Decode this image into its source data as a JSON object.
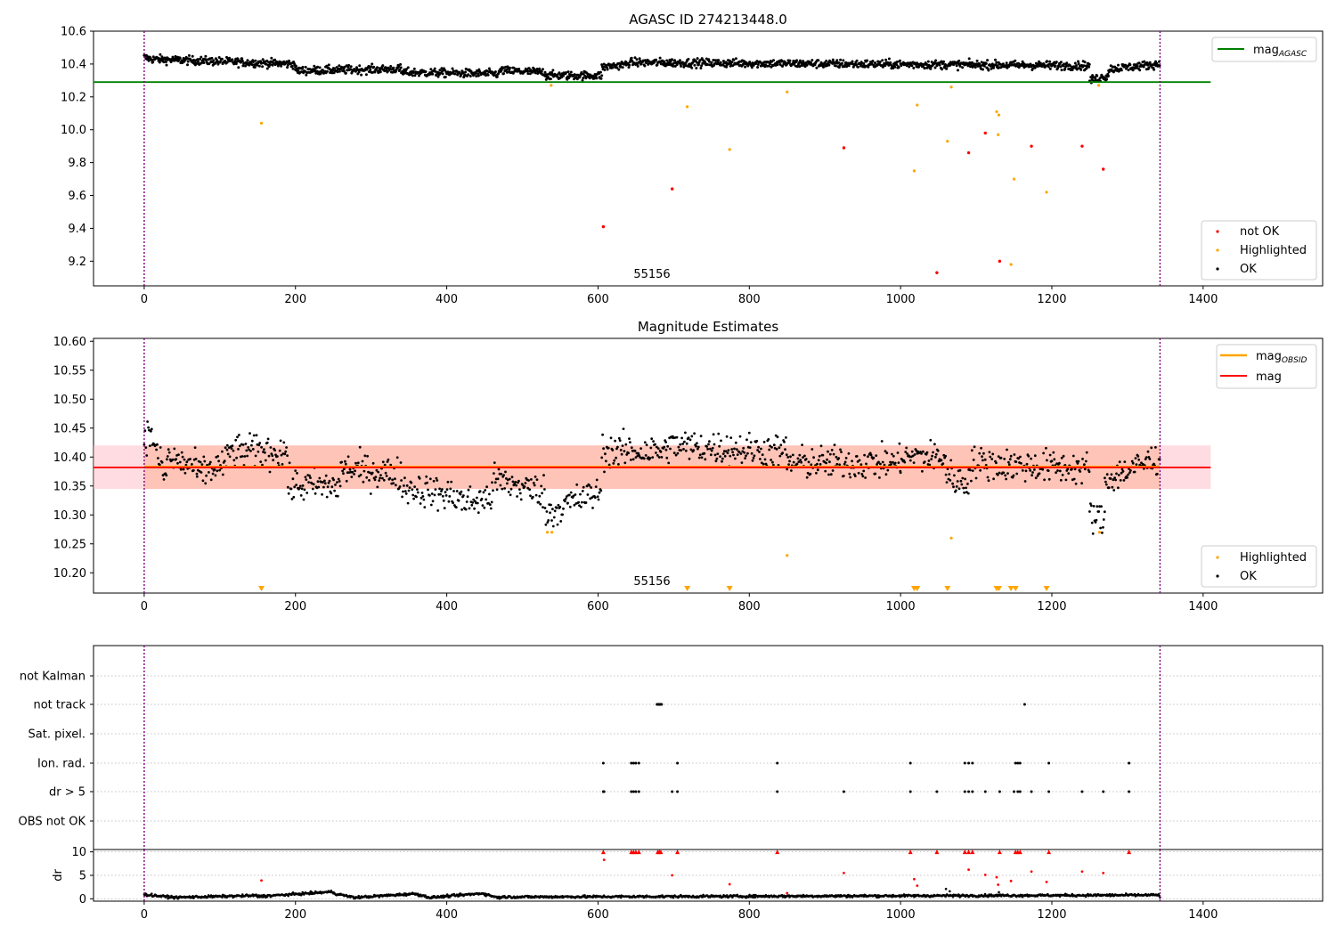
{
  "chart_data": [
    {
      "type": "scatter",
      "panel": "top",
      "title": "AGASC ID 274213448.0",
      "annotation": "55156",
      "xlim": [
        -67,
        1558
      ],
      "ylim": [
        9.05,
        10.6
      ],
      "xticks": [
        "0",
        "200",
        "400",
        "600",
        "800",
        "1000",
        "1200",
        "1400"
      ],
      "yticks": [
        "9.2",
        "9.4",
        "9.6",
        "9.8",
        "10.0",
        "10.2",
        "10.4",
        "10.6"
      ],
      "legend_top": {
        "placement": "top-right",
        "label": "mag",
        "subscript": "AGASC"
      },
      "legend_bottom": {
        "placement": "bottom-right",
        "labels": [
          "not OK",
          "Highlighted",
          "OK"
        ]
      },
      "colors": {
        "ok": "#000000",
        "highlighted": "#ffa500",
        "not_ok": "#ff0000",
        "mag_agasc": "#008000",
        "obs_boundary": "#800080"
      },
      "mag_agasc": 10.29,
      "obs_boundaries": [
        0,
        1343
      ],
      "ok_segments": [
        {
          "x0": 0,
          "x1": 10,
          "y0": 10.44,
          "y1": 10.43
        },
        {
          "x0": 10,
          "x1": 200,
          "y0": 10.43,
          "y1": 10.4
        },
        {
          "x0": 200,
          "x1": 340,
          "y0": 10.36,
          "y1": 10.37
        },
        {
          "x0": 340,
          "x1": 470,
          "y0": 10.35,
          "y1": 10.34
        },
        {
          "x0": 470,
          "x1": 530,
          "y0": 10.36,
          "y1": 10.35
        },
        {
          "x0": 530,
          "x1": 605,
          "y0": 10.33,
          "y1": 10.33
        },
        {
          "x0": 605,
          "x1": 640,
          "y0": 10.38,
          "y1": 10.4
        },
        {
          "x0": 640,
          "x1": 1250,
          "y0": 10.41,
          "y1": 10.39
        },
        {
          "x0": 1250,
          "x1": 1275,
          "y0": 10.3,
          "y1": 10.33
        },
        {
          "x0": 1275,
          "x1": 1343,
          "y0": 10.37,
          "y1": 10.4
        }
      ],
      "highlighted": [
        {
          "x": 155,
          "y": 10.04
        },
        {
          "x": 538,
          "y": 10.27
        },
        {
          "x": 718,
          "y": 10.14
        },
        {
          "x": 774,
          "y": 9.88
        },
        {
          "x": 850,
          "y": 10.23
        },
        {
          "x": 1018,
          "y": 9.75
        },
        {
          "x": 1022,
          "y": 10.15
        },
        {
          "x": 1062,
          "y": 9.93
        },
        {
          "x": 1067,
          "y": 10.26
        },
        {
          "x": 1127,
          "y": 10.11
        },
        {
          "x": 1129,
          "y": 9.97
        },
        {
          "x": 1130,
          "y": 10.09
        },
        {
          "x": 1146,
          "y": 9.18
        },
        {
          "x": 1150,
          "y": 9.7
        },
        {
          "x": 1193,
          "y": 9.62
        },
        {
          "x": 1262,
          "y": 10.27
        }
      ],
      "not_ok": [
        {
          "x": 607,
          "y": 9.41
        },
        {
          "x": 698,
          "y": 9.64
        },
        {
          "x": 925,
          "y": 9.89
        },
        {
          "x": 1048,
          "y": 9.13
        },
        {
          "x": 1090,
          "y": 9.86
        },
        {
          "x": 1112,
          "y": 9.98
        },
        {
          "x": 1131,
          "y": 9.2
        },
        {
          "x": 1173,
          "y": 9.9
        },
        {
          "x": 1240,
          "y": 9.9
        },
        {
          "x": 1268,
          "y": 9.76
        }
      ]
    },
    {
      "type": "scatter",
      "panel": "middle",
      "title": "Magnitude Estimates",
      "annotation": "55156",
      "xlim": [
        -67,
        1558
      ],
      "ylim": [
        10.165,
        10.605
      ],
      "xticks": [
        "0",
        "200",
        "400",
        "600",
        "800",
        "1000",
        "1200",
        "1400"
      ],
      "yticks": [
        "10.20",
        "10.25",
        "10.30",
        "10.35",
        "10.40",
        "10.45",
        "10.50",
        "10.55",
        "10.60"
      ],
      "legend_top": {
        "placement": "top-right",
        "labels": [
          "mag",
          "mag"
        ],
        "subscripts": [
          "OBSID",
          ""
        ]
      },
      "legend_bottom": {
        "placement": "bottom-right",
        "labels": [
          "Highlighted",
          "OK"
        ]
      },
      "colors": {
        "ok": "#000000",
        "highlighted": "#ffa500",
        "mag_line": "#ff0000",
        "mag_obsid": "#ffa500",
        "band_mag": "#ffc0cb",
        "band_obsid": "#ffa07a",
        "obs_boundary": "#800080"
      },
      "mag": 10.382,
      "mag_obsid": 10.383,
      "band_mag": [
        10.345,
        10.42
      ],
      "band_obsid": [
        10.345,
        10.42
      ],
      "band_obsid_range": [
        0,
        1343
      ],
      "band_mag_range": [
        -67,
        1410
      ],
      "ok_segments": [
        {
          "x0": 0,
          "x1": 15,
          "y0": 10.44,
          "y1": 10.43
        },
        {
          "x0": 15,
          "x1": 30,
          "y0": 10.41,
          "y1": 10.36
        },
        {
          "x0": 30,
          "x1": 70,
          "y0": 10.4,
          "y1": 10.38
        },
        {
          "x0": 70,
          "x1": 110,
          "y0": 10.37,
          "y1": 10.39
        },
        {
          "x0": 110,
          "x1": 190,
          "y0": 10.41,
          "y1": 10.41
        },
        {
          "x0": 190,
          "x1": 260,
          "y0": 10.35,
          "y1": 10.35
        },
        {
          "x0": 260,
          "x1": 340,
          "y0": 10.38,
          "y1": 10.37
        },
        {
          "x0": 340,
          "x1": 420,
          "y0": 10.35,
          "y1": 10.33
        },
        {
          "x0": 420,
          "x1": 460,
          "y0": 10.32,
          "y1": 10.33
        },
        {
          "x0": 460,
          "x1": 530,
          "y0": 10.36,
          "y1": 10.34
        },
        {
          "x0": 530,
          "x1": 560,
          "y0": 10.3,
          "y1": 10.32
        },
        {
          "x0": 560,
          "x1": 605,
          "y0": 10.32,
          "y1": 10.34
        },
        {
          "x0": 605,
          "x1": 690,
          "y0": 10.41,
          "y1": 10.41
        },
        {
          "x0": 690,
          "x1": 850,
          "y0": 10.42,
          "y1": 10.41
        },
        {
          "x0": 850,
          "x1": 1000,
          "y0": 10.39,
          "y1": 10.39
        },
        {
          "x0": 1000,
          "x1": 1060,
          "y0": 10.4,
          "y1": 10.4
        },
        {
          "x0": 1060,
          "x1": 1090,
          "y0": 10.37,
          "y1": 10.35
        },
        {
          "x0": 1090,
          "x1": 1250,
          "y0": 10.39,
          "y1": 10.38
        },
        {
          "x0": 1250,
          "x1": 1270,
          "y0": 10.3,
          "y1": 10.29
        },
        {
          "x0": 1270,
          "x1": 1343,
          "y0": 10.36,
          "y1": 10.4
        }
      ],
      "highlighted": [
        {
          "x": 533,
          "y": 10.27
        },
        {
          "x": 539,
          "y": 10.27
        },
        {
          "x": 850,
          "y": 10.23
        },
        {
          "x": 1067,
          "y": 10.26
        },
        {
          "x": 1263,
          "y": 10.27
        }
      ],
      "below_range": [
        155,
        718,
        774,
        1018,
        1022,
        1062,
        1127,
        1130,
        1146,
        1152,
        1193
      ]
    },
    {
      "type": "scatter",
      "panel": "flags",
      "xlim": [
        -67,
        1558
      ],
      "xticks": [
        "0",
        "200",
        "400",
        "600",
        "800",
        "1000",
        "1200",
        "1400"
      ],
      "categories": [
        "not Kalman",
        "not track",
        "Sat. pixel.",
        "Ion. rad.",
        "dr > 5",
        "OBS not OK"
      ],
      "colors": {
        "points": "#000000",
        "grid": "#b0b0b0",
        "obs_boundary": "#800080"
      },
      "not_kalman": [],
      "not_track": [
        678,
        679,
        680,
        681,
        682,
        683,
        684,
        1164
      ],
      "sat_pixel": [],
      "ion_rad": [
        607,
        644,
        647,
        650,
        654,
        705,
        837,
        1013,
        1085,
        1090,
        1095,
        1152,
        1155,
        1158,
        1196,
        1302
      ],
      "dr_gt_5": [
        607,
        608,
        644,
        647,
        650,
        654,
        698,
        705,
        837,
        925,
        1013,
        1048,
        1085,
        1090,
        1095,
        1112,
        1131,
        1150,
        1155,
        1158,
        1173,
        1196,
        1240,
        1268,
        1302
      ],
      "obs_not_ok": []
    },
    {
      "type": "scatter",
      "panel": "dr",
      "ylabel": "dr",
      "xlim": [
        -67,
        1558
      ],
      "ylim": [
        -0.5,
        10.5
      ],
      "xticks": [
        "0",
        "200",
        "400",
        "600",
        "800",
        "1000",
        "1200",
        "1400"
      ],
      "yticks": [
        "0",
        "5",
        "10"
      ],
      "colors": {
        "ok": "#000000",
        "flagged": "#ff0000",
        "grid": "#b0b0b0"
      },
      "ok_segments": [
        {
          "x0": 0,
          "x1": 40,
          "y0": 0.9,
          "y1": 0.3
        },
        {
          "x0": 40,
          "x1": 150,
          "y0": 0.3,
          "y1": 0.7
        },
        {
          "x0": 150,
          "x1": 250,
          "y0": 0.5,
          "y1": 1.5
        },
        {
          "x0": 250,
          "x1": 280,
          "y0": 1.2,
          "y1": 0.2
        },
        {
          "x0": 280,
          "x1": 360,
          "y0": 0.3,
          "y1": 1.1
        },
        {
          "x0": 360,
          "x1": 380,
          "y0": 1.0,
          "y1": 0.2
        },
        {
          "x0": 380,
          "x1": 450,
          "y0": 0.3,
          "y1": 1.2
        },
        {
          "x0": 450,
          "x1": 470,
          "y0": 1.0,
          "y1": 0.2
        },
        {
          "x0": 470,
          "x1": 1343,
          "y0": 0.4,
          "y1": 0.8
        }
      ],
      "ok_extra": [
        {
          "x": 1060,
          "y": 2.1
        },
        {
          "x": 1065,
          "y": 1.6
        },
        {
          "x": 1130,
          "y": 1.4
        },
        {
          "x": 1343,
          "y": 0.3
        }
      ],
      "flagged_capped": [
        607,
        644,
        647,
        650,
        654,
        679,
        681,
        683,
        705,
        837,
        1013,
        1048,
        1085,
        1090,
        1095,
        1131,
        1152,
        1155,
        1158,
        1196,
        1302
      ],
      "flagged": [
        {
          "x": 155,
          "y": 3.9
        },
        {
          "x": 608,
          "y": 8.3
        },
        {
          "x": 698,
          "y": 5.0
        },
        {
          "x": 774,
          "y": 3.1
        },
        {
          "x": 850,
          "y": 1.2
        },
        {
          "x": 925,
          "y": 5.5
        },
        {
          "x": 1018,
          "y": 4.2
        },
        {
          "x": 1022,
          "y": 2.8
        },
        {
          "x": 1090,
          "y": 6.2
        },
        {
          "x": 1112,
          "y": 5.1
        },
        {
          "x": 1127,
          "y": 4.6
        },
        {
          "x": 1129,
          "y": 3.0
        },
        {
          "x": 1146,
          "y": 3.8
        },
        {
          "x": 1173,
          "y": 5.8
        },
        {
          "x": 1193,
          "y": 3.6
        },
        {
          "x": 1240,
          "y": 5.8
        },
        {
          "x": 1268,
          "y": 5.5
        }
      ]
    }
  ]
}
